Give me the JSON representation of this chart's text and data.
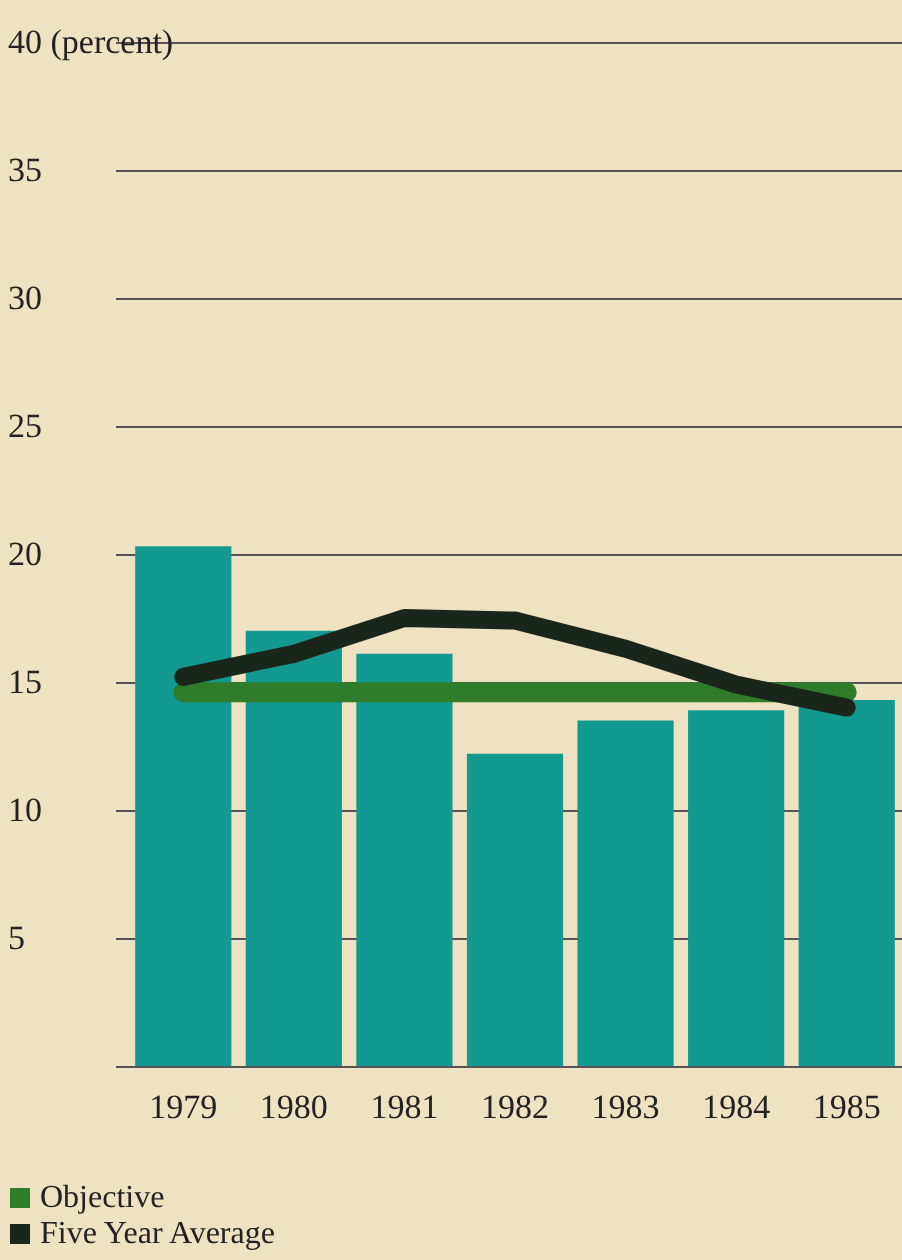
{
  "chart_data": {
    "type": "bar",
    "categories": [
      "1979",
      "1980",
      "1981",
      "1982",
      "1983",
      "1984",
      "1985"
    ],
    "series": [
      {
        "color": "#139a90",
        "values": [
          20.3,
          17.0,
          16.1,
          12.2,
          13.5,
          13.9,
          14.3
        ]
      },
      {
        "type": "line",
        "name": "Objective",
        "color": "#2f7d2a",
        "values": [
          14.6,
          14.6,
          14.6,
          14.6,
          14.6,
          14.6,
          14.6
        ]
      },
      {
        "type": "line",
        "name": "Five Year Average",
        "color": "#1a261c",
        "values": [
          15.2,
          16.1,
          17.5,
          17.4,
          16.3,
          14.9,
          14.0
        ]
      }
    ],
    "ylim": [
      0,
      40
    ],
    "yticks": [
      {
        "value": 0,
        "label": null
      },
      5,
      10,
      15,
      20,
      25,
      30,
      35,
      {
        "value": 40,
        "label": "40 (percent)"
      }
    ],
    "grid": "y",
    "legend": "bottom left",
    "marker": "none"
  }
}
